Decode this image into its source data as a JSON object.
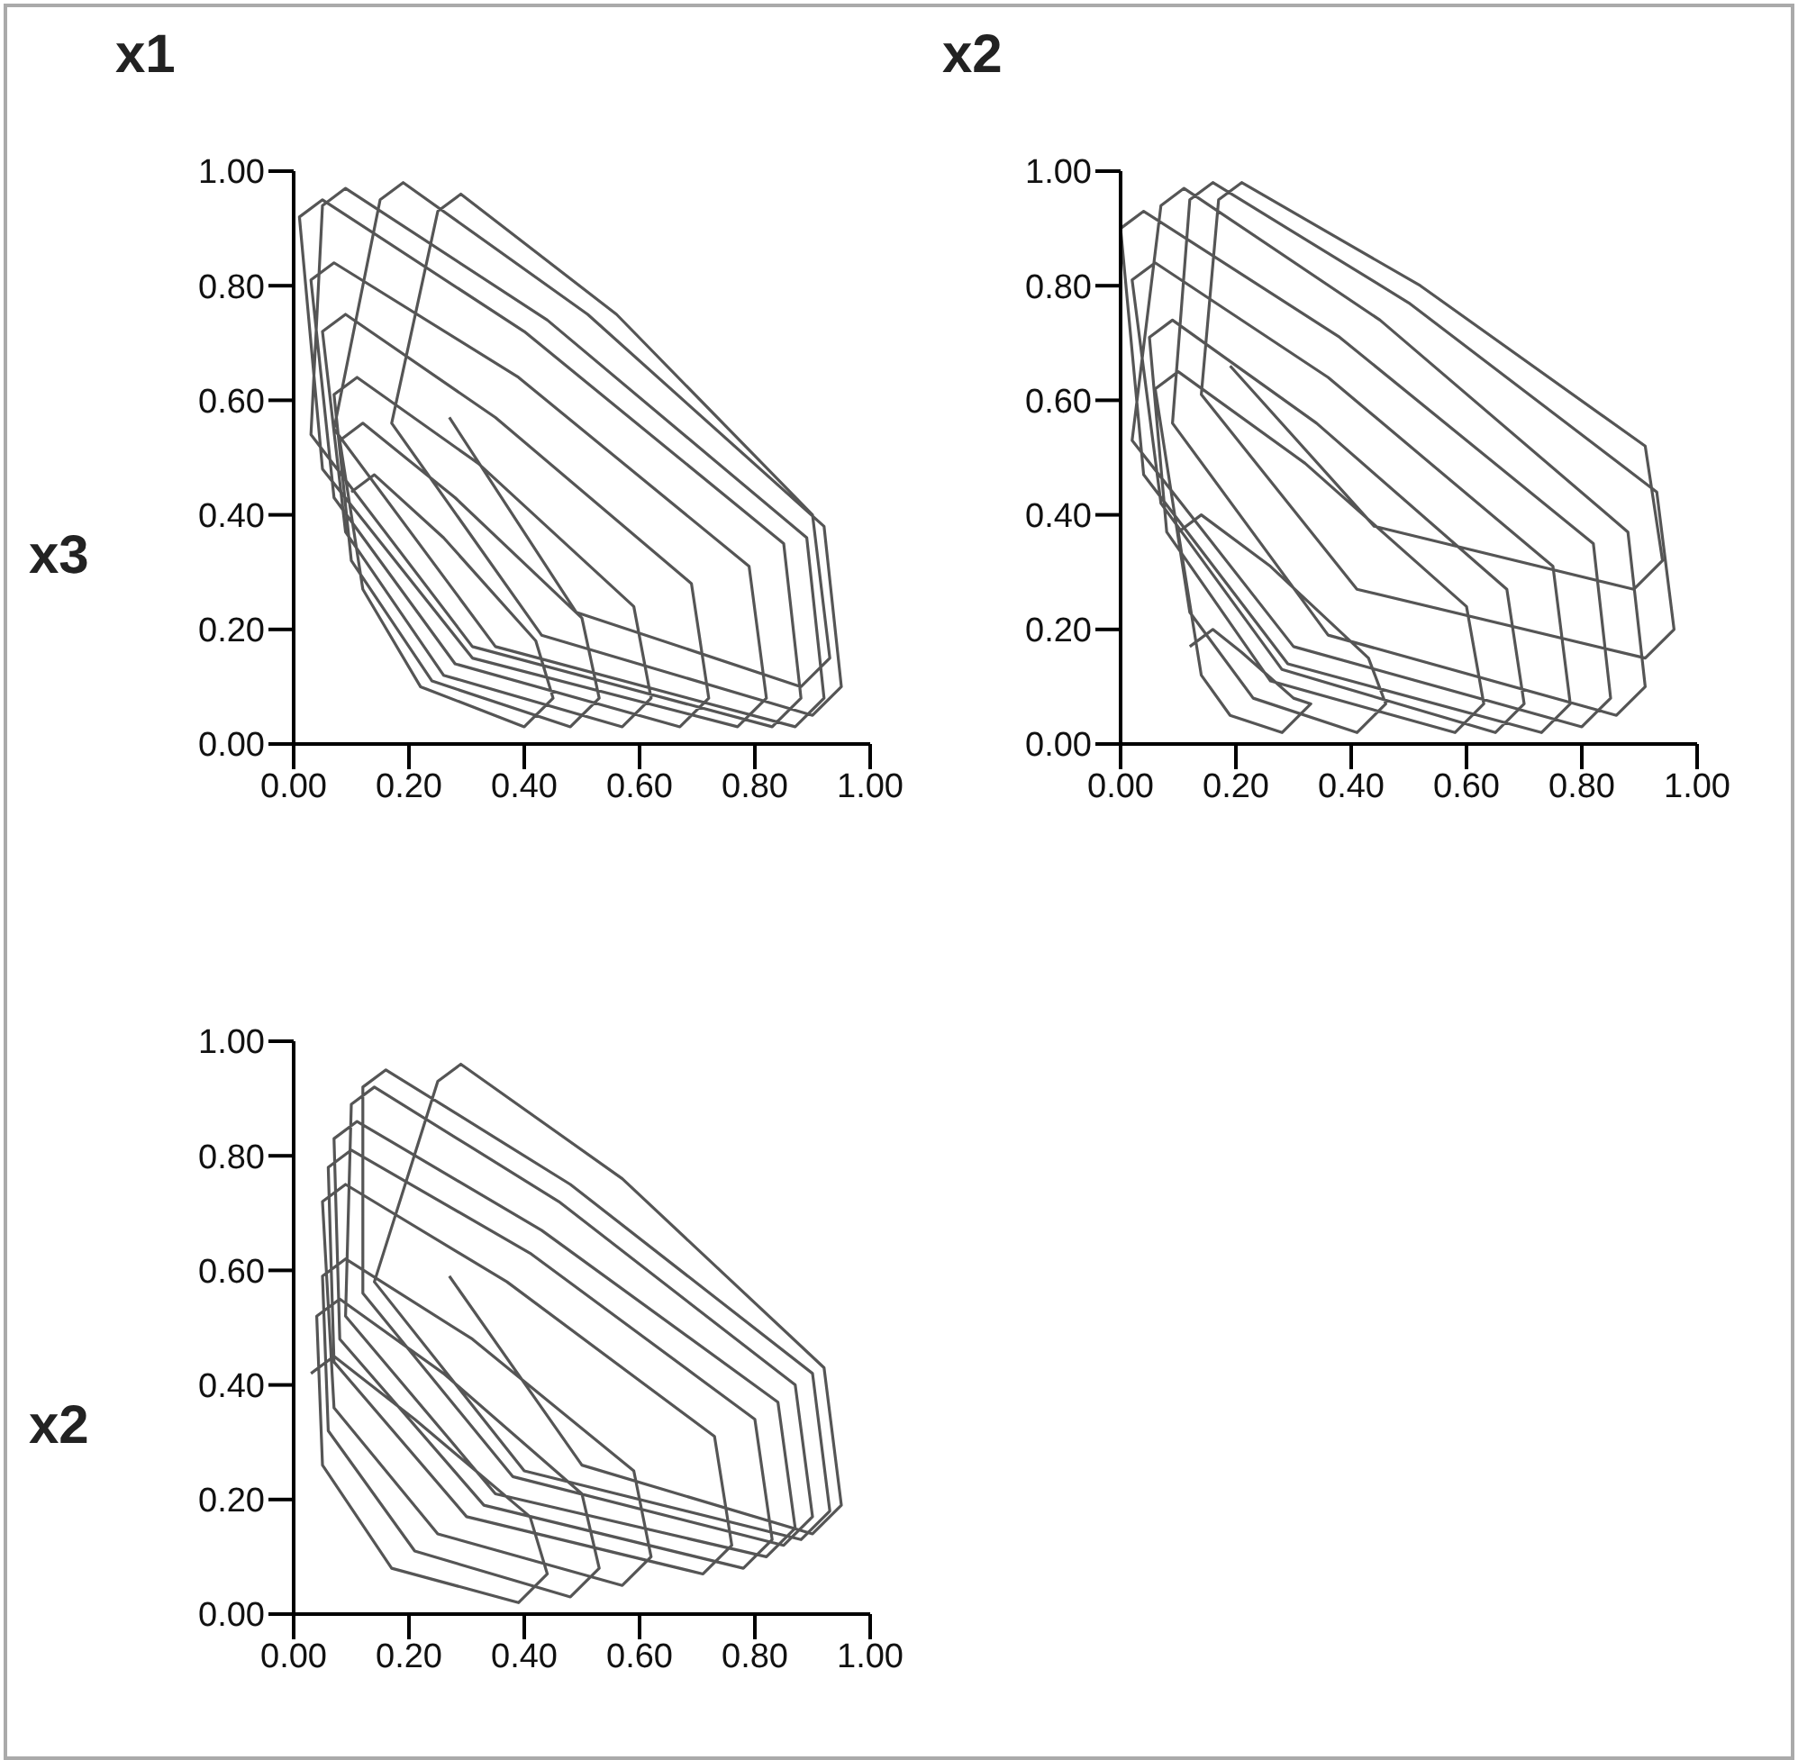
{
  "chart_data": [
    {
      "type": "line",
      "title": "x1",
      "ylabel": "x3",
      "color": "#555555",
      "xlim": [
        0,
        1
      ],
      "ylim": [
        0,
        1
      ],
      "xticks": [
        {
          "value": 0,
          "label": "0.00"
        },
        {
          "value": 0.2,
          "label": "0.20"
        },
        {
          "value": 0.4,
          "label": "0.40"
        },
        {
          "value": 0.6,
          "label": "0.60"
        },
        {
          "value": 0.8,
          "label": "0.80"
        },
        {
          "value": 1,
          "label": "1.00"
        }
      ],
      "yticks": [
        {
          "value": 0,
          "label": "0.00"
        },
        {
          "value": 0.2,
          "label": "0.20"
        },
        {
          "value": 0.4,
          "label": "0.40"
        },
        {
          "value": 0.6,
          "label": "0.60"
        },
        {
          "value": 0.8,
          "label": "0.80"
        },
        {
          "value": 1,
          "label": "1.00"
        }
      ],
      "x": [
        0.1,
        0.14,
        0.26,
        0.42,
        0.45,
        0.4,
        0.22,
        0.12,
        0.08,
        0.12,
        0.28,
        0.5,
        0.53,
        0.48,
        0.24,
        0.1,
        0.07,
        0.11,
        0.32,
        0.59,
        0.62,
        0.57,
        0.26,
        0.09,
        0.05,
        0.09,
        0.35,
        0.69,
        0.72,
        0.67,
        0.28,
        0.07,
        0.03,
        0.07,
        0.39,
        0.79,
        0.82,
        0.77,
        0.31,
        0.05,
        0.01,
        0.05,
        0.4,
        0.85,
        0.88,
        0.83,
        0.31,
        0.03,
        0.05,
        0.09,
        0.44,
        0.89,
        0.92,
        0.87,
        0.35,
        0.07,
        0.15,
        0.19,
        0.51,
        0.92,
        0.95,
        0.9,
        0.43,
        0.17,
        0.25,
        0.29,
        0.56,
        0.9,
        0.93,
        0.88,
        0.49,
        0.27
      ],
      "values": [
        0.44,
        0.47,
        0.36,
        0.18,
        0.08,
        0.03,
        0.1,
        0.27,
        0.53,
        0.56,
        0.43,
        0.22,
        0.08,
        0.03,
        0.11,
        0.32,
        0.61,
        0.64,
        0.49,
        0.24,
        0.08,
        0.03,
        0.12,
        0.37,
        0.72,
        0.75,
        0.57,
        0.28,
        0.08,
        0.03,
        0.14,
        0.43,
        0.81,
        0.84,
        0.64,
        0.31,
        0.08,
        0.03,
        0.15,
        0.48,
        0.92,
        0.95,
        0.72,
        0.35,
        0.08,
        0.03,
        0.17,
        0.54,
        0.94,
        0.97,
        0.74,
        0.36,
        0.08,
        0.03,
        0.17,
        0.55,
        0.95,
        0.98,
        0.75,
        0.38,
        0.1,
        0.05,
        0.19,
        0.56,
        0.93,
        0.96,
        0.75,
        0.4,
        0.15,
        0.1,
        0.23,
        0.57
      ]
    },
    {
      "type": "line",
      "title": "x2",
      "color": "#555555",
      "xlim": [
        0,
        1
      ],
      "ylim": [
        0,
        1
      ],
      "xticks": [
        {
          "value": 0,
          "label": "0.00"
        },
        {
          "value": 0.2,
          "label": "0.20"
        },
        {
          "value": 0.4,
          "label": "0.40"
        },
        {
          "value": 0.6,
          "label": "0.60"
        },
        {
          "value": 0.8,
          "label": "0.80"
        },
        {
          "value": 1,
          "label": "1.00"
        }
      ],
      "yticks": [
        {
          "value": 0,
          "label": "0.00"
        },
        {
          "value": 0.2,
          "label": "0.20"
        },
        {
          "value": 0.4,
          "label": "0.40"
        },
        {
          "value": 0.6,
          "label": "0.60"
        },
        {
          "value": 0.8,
          "label": "0.80"
        },
        {
          "value": 1,
          "label": "1.00"
        }
      ],
      "x": [
        0.12,
        0.16,
        0.21,
        0.3,
        0.33,
        0.28,
        0.19,
        0.14,
        0.1,
        0.14,
        0.26,
        0.43,
        0.46,
        0.41,
        0.23,
        0.12,
        0.06,
        0.1,
        0.32,
        0.6,
        0.63,
        0.58,
        0.26,
        0.08,
        0.05,
        0.09,
        0.34,
        0.67,
        0.7,
        0.65,
        0.28,
        0.07,
        0.02,
        0.06,
        0.36,
        0.75,
        0.78,
        0.73,
        0.29,
        0.04,
        0.0,
        0.04,
        0.38,
        0.82,
        0.85,
        0.8,
        0.3,
        0.02,
        0.07,
        0.11,
        0.45,
        0.88,
        0.91,
        0.86,
        0.36,
        0.09,
        0.12,
        0.16,
        0.5,
        0.93,
        0.96,
        0.91,
        0.41,
        0.14,
        0.17,
        0.21,
        0.52,
        0.91,
        0.94,
        0.89,
        0.44,
        0.19
      ],
      "values": [
        0.17,
        0.2,
        0.16,
        0.08,
        0.07,
        0.02,
        0.05,
        0.12,
        0.37,
        0.4,
        0.31,
        0.15,
        0.07,
        0.02,
        0.08,
        0.23,
        0.62,
        0.65,
        0.49,
        0.24,
        0.07,
        0.02,
        0.11,
        0.37,
        0.71,
        0.74,
        0.56,
        0.27,
        0.07,
        0.02,
        0.13,
        0.42,
        0.81,
        0.84,
        0.64,
        0.31,
        0.07,
        0.02,
        0.14,
        0.47,
        0.9,
        0.93,
        0.71,
        0.35,
        0.08,
        0.03,
        0.17,
        0.53,
        0.94,
        0.97,
        0.74,
        0.37,
        0.1,
        0.05,
        0.19,
        0.56,
        0.95,
        0.98,
        0.77,
        0.44,
        0.2,
        0.15,
        0.27,
        0.61,
        0.95,
        0.98,
        0.8,
        0.52,
        0.32,
        0.27,
        0.38,
        0.66
      ]
    },
    {
      "type": "line",
      "ylabel": "x2",
      "color": "#555555",
      "xlim": [
        0,
        1
      ],
      "ylim": [
        0,
        1
      ],
      "xticks": [
        {
          "value": 0,
          "label": "0.00"
        },
        {
          "value": 0.2,
          "label": "0.20"
        },
        {
          "value": 0.4,
          "label": "0.40"
        },
        {
          "value": 0.6,
          "label": "0.60"
        },
        {
          "value": 0.8,
          "label": "0.80"
        },
        {
          "value": 1,
          "label": "1.00"
        }
      ],
      "yticks": [
        {
          "value": 0,
          "label": "0.00"
        },
        {
          "value": 0.2,
          "label": "0.20"
        },
        {
          "value": 0.4,
          "label": "0.40"
        },
        {
          "value": 0.6,
          "label": "0.60"
        },
        {
          "value": 0.8,
          "label": "0.80"
        },
        {
          "value": 1,
          "label": "1.00"
        }
      ],
      "x": [
        0.03,
        0.07,
        0.21,
        0.41,
        0.44,
        0.39,
        0.17,
        0.05,
        0.04,
        0.08,
        0.26,
        0.5,
        0.53,
        0.48,
        0.21,
        0.06,
        0.05,
        0.09,
        0.31,
        0.59,
        0.62,
        0.57,
        0.25,
        0.07,
        0.05,
        0.09,
        0.37,
        0.73,
        0.76,
        0.71,
        0.3,
        0.07,
        0.06,
        0.1,
        0.41,
        0.8,
        0.83,
        0.78,
        0.33,
        0.08,
        0.07,
        0.11,
        0.43,
        0.84,
        0.87,
        0.82,
        0.35,
        0.09,
        0.1,
        0.14,
        0.46,
        0.87,
        0.9,
        0.85,
        0.38,
        0.12,
        0.12,
        0.16,
        0.48,
        0.9,
        0.93,
        0.88,
        0.4,
        0.14,
        0.25,
        0.29,
        0.57,
        0.92,
        0.95,
        0.9,
        0.5,
        0.27
      ],
      "values": [
        0.42,
        0.45,
        0.34,
        0.17,
        0.07,
        0.02,
        0.08,
        0.26,
        0.52,
        0.55,
        0.42,
        0.21,
        0.08,
        0.03,
        0.11,
        0.32,
        0.59,
        0.62,
        0.48,
        0.25,
        0.1,
        0.05,
        0.14,
        0.36,
        0.72,
        0.75,
        0.58,
        0.31,
        0.12,
        0.07,
        0.17,
        0.44,
        0.78,
        0.81,
        0.63,
        0.34,
        0.13,
        0.08,
        0.19,
        0.48,
        0.83,
        0.86,
        0.67,
        0.37,
        0.15,
        0.1,
        0.21,
        0.52,
        0.89,
        0.92,
        0.72,
        0.4,
        0.17,
        0.12,
        0.24,
        0.56,
        0.92,
        0.95,
        0.75,
        0.42,
        0.18,
        0.13,
        0.25,
        0.58,
        0.93,
        0.96,
        0.76,
        0.43,
        0.19,
        0.14,
        0.26,
        0.59
      ]
    }
  ]
}
